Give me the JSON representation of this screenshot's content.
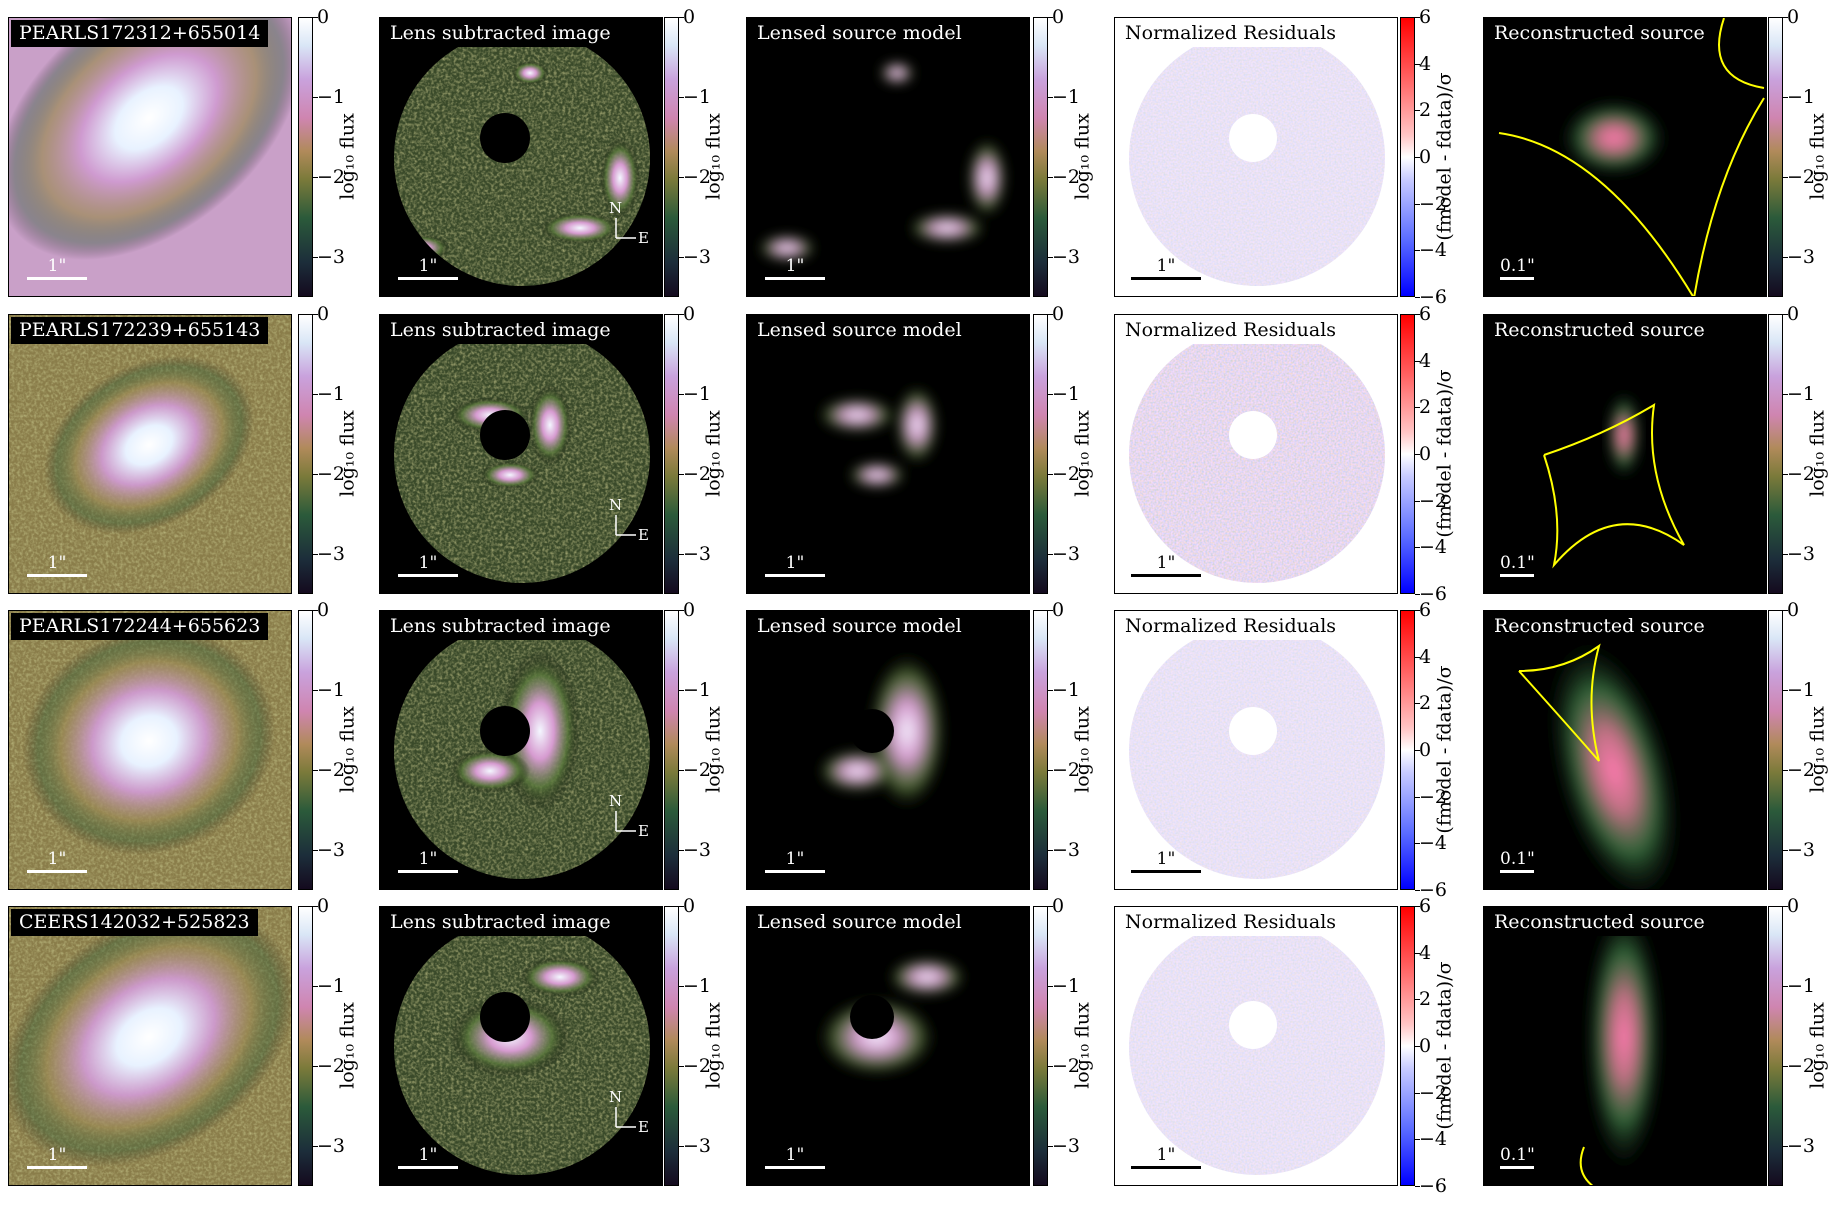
{
  "rows": [
    {
      "name": "PEARLS172312+655014"
    },
    {
      "name": "PEARLS172239+655143"
    },
    {
      "name": "PEARLS172244+655623"
    },
    {
      "name": "CEERS142032+525823"
    }
  ],
  "column_titles": {
    "col1": "",
    "col2": "Lens subtracted image",
    "col3": "Lensed source model",
    "col4": "Normalized Residuals",
    "col5": "Reconstructed source"
  },
  "scalebars": {
    "image": "1\"",
    "source": "0.1\""
  },
  "compass": {
    "north": "N",
    "east": "E"
  },
  "colorbars": {
    "flux": {
      "label": "log₁₀ flux",
      "ticks": [
        "0",
        "−1",
        "−2",
        "−3"
      ],
      "range": [
        -3.5,
        0
      ]
    },
    "residual": {
      "label": "(fₘₒₑₑ - fₑₐₜₐ)/σ",
      "label_plain": "(fmodel - fdata)/σ",
      "ticks": [
        "6",
        "4",
        "2",
        "0",
        "−2",
        "−4",
        "−6"
      ],
      "range": [
        -6,
        6
      ]
    }
  },
  "colors": {
    "flux_cmap": "cubehelix",
    "residual_cmap": "bwr",
    "caustic": "#ffff00"
  }
}
